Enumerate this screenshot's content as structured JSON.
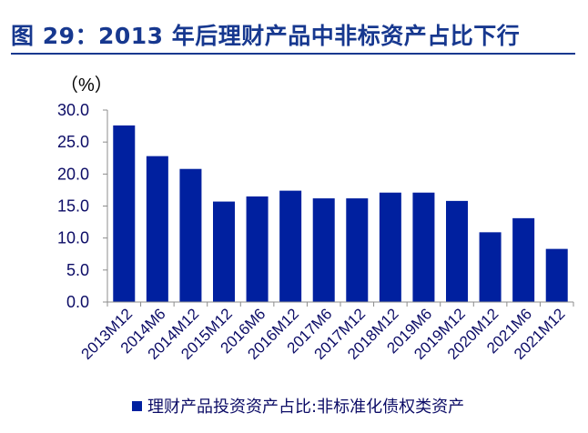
{
  "title": "图 29：2013 年后理财产品中非标资产占比下行",
  "chart_data": {
    "type": "bar",
    "ylabel": "（%）",
    "ylim": [
      0,
      30
    ],
    "yticks": [
      "30.0",
      "25.0",
      "20.0",
      "15.0",
      "10.0",
      "5.0",
      "0.0"
    ],
    "categories": [
      "2013M12",
      "2014M6",
      "2014M12",
      "2015M12",
      "2016M6",
      "2016M12",
      "2017M6",
      "2017M12",
      "2018M12",
      "2019M6",
      "2019M12",
      "2020M12",
      "2021M6",
      "2021M12"
    ],
    "series": [
      {
        "name": "理财产品投资资产占比:非标准化债权类资产",
        "color": "#00209f",
        "values": [
          27.6,
          22.8,
          20.8,
          15.7,
          16.5,
          17.4,
          16.2,
          16.2,
          17.1,
          17.1,
          15.8,
          10.9,
          13.1,
          8.3
        ]
      }
    ],
    "legend": "bottom",
    "grid": false
  }
}
